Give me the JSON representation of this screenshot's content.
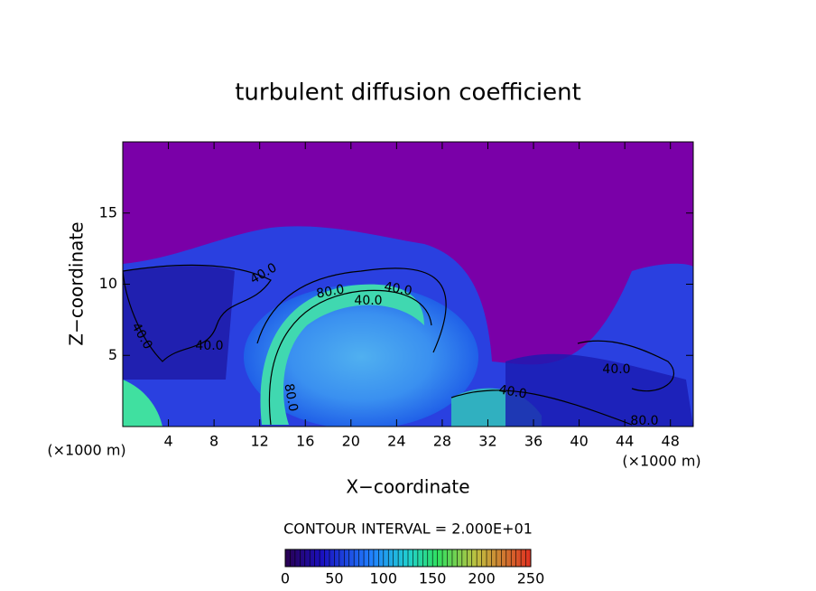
{
  "chart_data": {
    "type": "contour",
    "title": "turbulent diffusion coefficient",
    "x_label": "X−coordinate",
    "y_label": "Z−coordinate",
    "x_unit": "(×1000 m)",
    "y_unit": "(×1000 m)",
    "xlim": [
      0,
      50
    ],
    "xticks": [
      4,
      8,
      12,
      16,
      20,
      24,
      28,
      32,
      36,
      40,
      44,
      48
    ],
    "ylim": [
      0,
      20
    ],
    "yticks": [
      5,
      10,
      15
    ],
    "contour_interval_text": "CONTOUR INTERVAL = 2.000E+01",
    "contour_labels": [
      {
        "value": 40,
        "label": "40.0"
      },
      {
        "value": 80,
        "label": "80.0"
      },
      {
        "value": 40,
        "label": "40.0"
      },
      {
        "value": 40,
        "label": "40.0"
      },
      {
        "value": 40,
        "label": "40.0"
      },
      {
        "value": 40,
        "label": "40.0"
      },
      {
        "value": 80,
        "label": "80.0"
      },
      {
        "value": 40,
        "label": "40.0"
      },
      {
        "value": 40,
        "label": "40.0"
      },
      {
        "value": 80,
        "label": "80.0"
      }
    ],
    "colorbar": {
      "lim": [
        0,
        250
      ],
      "ticks": [
        0,
        50,
        100,
        150,
        200,
        250
      ]
    }
  }
}
